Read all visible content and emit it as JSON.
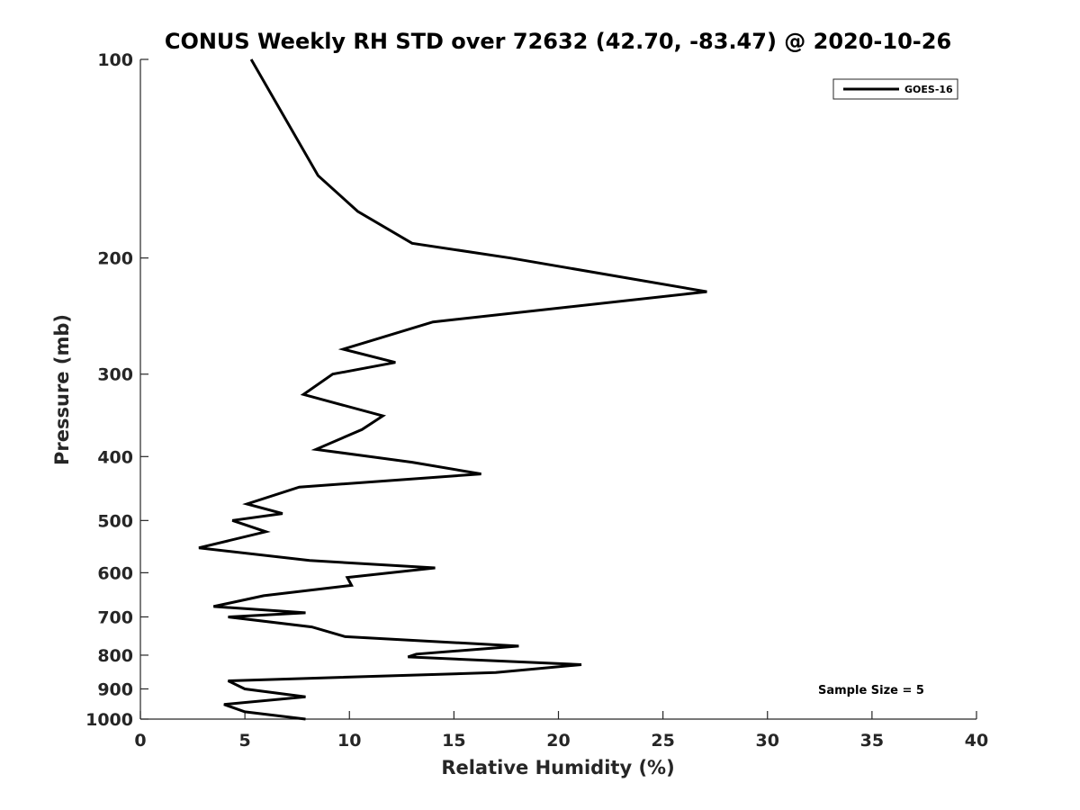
{
  "chart_data": {
    "type": "line",
    "title": "CONUS Weekly RH STD over 72632 (42.70, -83.47) @ 2020-10-26",
    "xlabel": "Relative Humidity (%)",
    "ylabel": "Pressure (mb)",
    "xlim": [
      0,
      40
    ],
    "ylim": [
      100,
      1000
    ],
    "yscale": "log",
    "y_reversed": true,
    "x_ticks": [
      0,
      5,
      10,
      15,
      20,
      25,
      30,
      35,
      40
    ],
    "x_tick_labels": [
      "0",
      "5",
      "10",
      "15",
      "20",
      "25",
      "30",
      "35",
      "40"
    ],
    "y_ticks": [
      100,
      200,
      300,
      400,
      500,
      600,
      700,
      800,
      900,
      1000
    ],
    "y_tick_labels": [
      "100",
      "200",
      "300",
      "400",
      "500",
      "600",
      "700",
      "800",
      "900",
      "1000"
    ],
    "grid": false,
    "legend": {
      "position": "top-right",
      "entries": [
        "GOES-16"
      ]
    },
    "annotation": "Sample Size = 5",
    "series": [
      {
        "name": "GOES-16",
        "color": "#000000",
        "points": [
          [
            5.3,
            100
          ],
          [
            8.5,
            150
          ],
          [
            10.4,
            170
          ],
          [
            13.0,
            190
          ],
          [
            17.7,
            200
          ],
          [
            27.1,
            225
          ],
          [
            14.0,
            250
          ],
          [
            9.7,
            275
          ],
          [
            12.2,
            288
          ],
          [
            9.2,
            300
          ],
          [
            7.8,
            322
          ],
          [
            11.6,
            347
          ],
          [
            10.6,
            364
          ],
          [
            8.4,
            390
          ],
          [
            13.0,
            408
          ],
          [
            16.3,
            425
          ],
          [
            7.6,
            445
          ],
          [
            5.1,
            472
          ],
          [
            6.8,
            488
          ],
          [
            4.4,
            500
          ],
          [
            6.0,
            520
          ],
          [
            2.8,
            550
          ],
          [
            8.1,
            575
          ],
          [
            14.1,
            590
          ],
          [
            9.9,
            610
          ],
          [
            10.1,
            627
          ],
          [
            5.9,
            650
          ],
          [
            3.5,
            675
          ],
          [
            7.9,
            690
          ],
          [
            4.2,
            700
          ],
          [
            8.2,
            725
          ],
          [
            9.8,
            750
          ],
          [
            18.1,
            775
          ],
          [
            13.2,
            797
          ],
          [
            12.8,
            805
          ],
          [
            21.1,
            827
          ],
          [
            17.0,
            850
          ],
          [
            4.2,
            875
          ],
          [
            5.0,
            900
          ],
          [
            7.9,
            925
          ],
          [
            4.0,
            950
          ],
          [
            5.0,
            975
          ],
          [
            7.9,
            1000
          ]
        ]
      }
    ]
  }
}
